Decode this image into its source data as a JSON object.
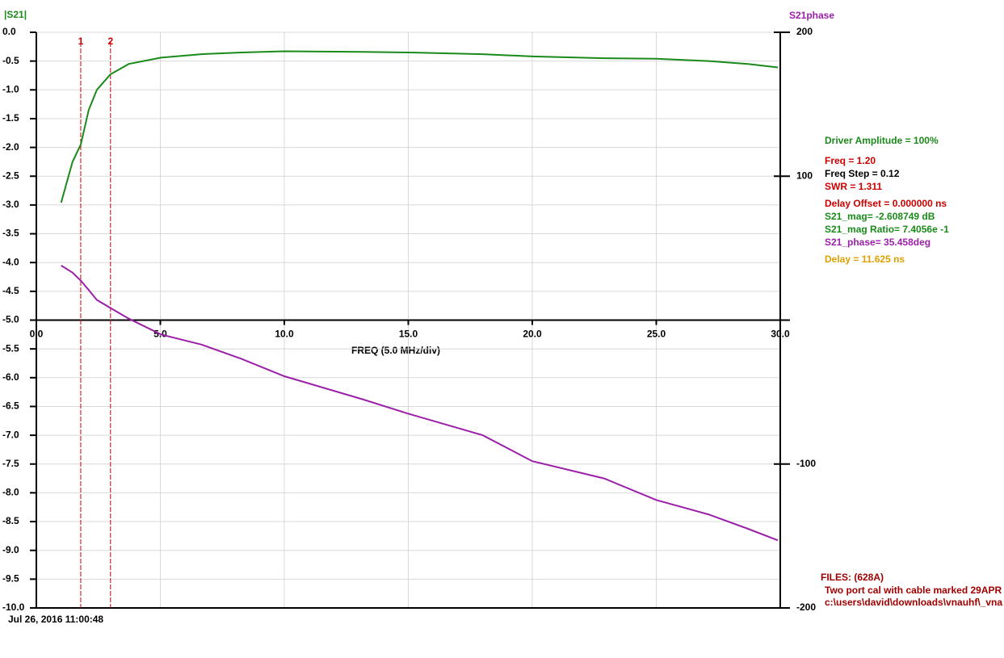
{
  "chart_data": {
    "type": "line",
    "y_label": "|S21|",
    "y2_label": "S21phase",
    "x_label": "FREQ (5.0 MHz/div)",
    "x": [
      1.0,
      1.46,
      1.79,
      2.11,
      2.44,
      2.99,
      3.73,
      5.03,
      6.66,
      8.28,
      10.0,
      13.15,
      15.0,
      18.0,
      20.0,
      22.9,
      25.0,
      27.1,
      28.7,
      29.9
    ],
    "series": [
      {
        "color": "#1a8a1a",
        "values": [
          -2.96,
          -2.25,
          -1.95,
          -1.35,
          -1.0,
          -0.73,
          -0.55,
          -0.44,
          -0.38,
          -0.35,
          -0.33,
          -0.34,
          -0.35,
          -0.38,
          -0.42,
          -0.45,
          -0.46,
          -0.5,
          -0.55,
          -0.61
        ]
      },
      {
        "color": "#9b1fa8",
        "axis": "y2",
        "values": [
          38,
          33,
          27.5,
          21,
          14,
          8.4,
          1,
          -10,
          -17,
          -27,
          -39,
          -55,
          -65,
          -80,
          -98,
          -110,
          -125,
          -135,
          -145,
          -153
        ]
      }
    ],
    "xlim": [
      0,
      30
    ],
    "xticks": [
      {
        "value": 0,
        "label": "0.0"
      },
      {
        "value": 5,
        "label": "5.0"
      },
      {
        "value": 10,
        "label": "10.0"
      },
      {
        "value": 15,
        "label": "15.0"
      },
      {
        "value": 20,
        "label": "20.0"
      },
      {
        "value": 25,
        "label": "25.0"
      },
      {
        "value": 30,
        "label": "30.0"
      }
    ],
    "ylim": [
      -10,
      0
    ],
    "yticks": [
      {
        "value": 0,
        "label": "0.0"
      },
      -0.5,
      {
        "value": -1,
        "label": "-1.0"
      },
      -1.5,
      {
        "value": -2,
        "label": "-2.0"
      },
      -2.5,
      {
        "value": -3,
        "label": "-3.0"
      },
      -3.5,
      {
        "value": -4,
        "label": "-4.0"
      },
      -4.5,
      {
        "value": -5,
        "label": "-5.0"
      },
      -5.5,
      {
        "value": -6,
        "label": "-6.0"
      },
      -6.5,
      {
        "value": -7,
        "label": "-7.0"
      },
      -7.5,
      {
        "value": -8,
        "label": "-8.0"
      },
      -8.5,
      {
        "value": -9,
        "label": "-9.0"
      },
      -9.5,
      {
        "value": -10,
        "label": "-10.0"
      }
    ],
    "y2lim": [
      -200,
      200
    ],
    "y2ticks": [
      200,
      100,
      -100,
      -200
    ],
    "grid": true,
    "markers": [
      {
        "label": "1",
        "x": 1.79
      },
      {
        "label": "2",
        "x": 2.99
      }
    ],
    "marker_color": "#cc0000",
    "annotations": [
      {
        "text": "Driver Amplitude = 100%",
        "color": "#1a8a1a"
      },
      {
        "text": "Freq = 1.20",
        "color": "#cc0000"
      },
      {
        "text": "Freq Step = 0.12",
        "color": "#000000"
      },
      {
        "text": "SWR =   1.311",
        "color": "#cc0000"
      },
      {
        "text": "Delay Offset =  0.000000 ns",
        "color": "#cc0000"
      },
      {
        "text": "S21_mag= -2.608749 dB",
        "color": "#1a8a1a"
      },
      {
        "text": "S21_mag Ratio= 7.4056e -1",
        "color": "#1a8a1a"
      },
      {
        "text": "S21_phase=  35.458deg",
        "color": "#9b1fa8"
      },
      {
        "text": "Delay =  11.625 ns",
        "color": "#e0a000"
      }
    ],
    "files": [
      {
        "text": "FILES: (628A)",
        "color": "#a00000"
      },
      {
        "text": "Two port cal with cable marked 29APR",
        "color": "#a00000"
      },
      {
        "text": "c:\\users\\david\\downloads\\vnauhf\\_vna",
        "color": "#a00000"
      }
    ],
    "timestamp": "Jul 26, 2016  11:00:48"
  }
}
